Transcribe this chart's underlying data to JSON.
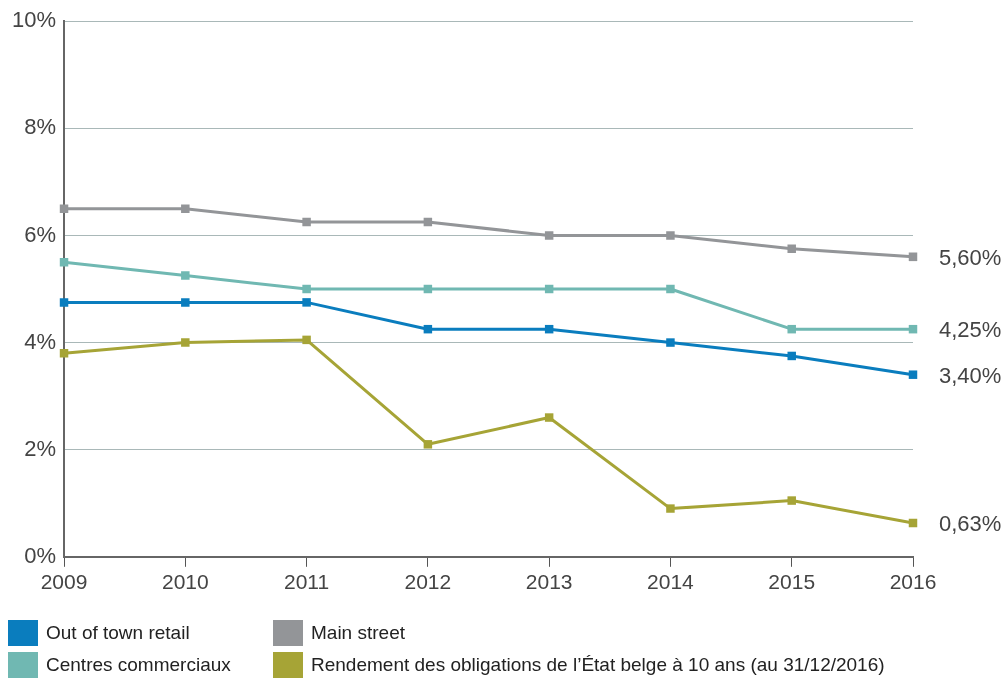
{
  "chart_data": {
    "type": "line",
    "categories": [
      "2009",
      "2010",
      "2011",
      "2012",
      "2013",
      "2014",
      "2015",
      "2016"
    ],
    "series": [
      {
        "name": "Out of town retail",
        "color": "#0a7dbe",
        "values": [
          4.75,
          4.75,
          4.75,
          4.25,
          4.25,
          4.0,
          3.75,
          3.4
        ],
        "value_labels": [
          null,
          null,
          null,
          null,
          null,
          null,
          null,
          "3,40%"
        ]
      },
      {
        "name": "Main street",
        "color": "#939598",
        "values": [
          6.5,
          6.5,
          6.25,
          6.25,
          6.0,
          6.0,
          5.75,
          5.6
        ],
        "value_labels": [
          null,
          null,
          null,
          null,
          null,
          null,
          null,
          "5,60%"
        ]
      },
      {
        "name": "Centres commerciaux",
        "color": "#70b8b2",
        "values": [
          5.5,
          5.25,
          5.0,
          5.0,
          5.0,
          5.0,
          4.25,
          4.25
        ],
        "value_labels": [
          null,
          null,
          null,
          null,
          null,
          null,
          null,
          "4,25%"
        ]
      },
      {
        "name": "Rendement des obligations de l’État belge à 10 ans (au 31/12/2016)",
        "color": "#a6a436",
        "values": [
          3.8,
          4.0,
          4.05,
          2.1,
          2.6,
          0.9,
          1.05,
          0.63
        ],
        "value_labels": [
          null,
          null,
          null,
          null,
          null,
          null,
          null,
          "0,63%"
        ]
      }
    ],
    "ylim": [
      0,
      10
    ],
    "yticks": [
      {
        "value": 0,
        "label": "0%"
      },
      {
        "value": 2,
        "label": "2%"
      },
      {
        "value": 4,
        "label": "4%"
      },
      {
        "value": 6,
        "label": "6%"
      },
      {
        "value": 8,
        "label": "8%"
      },
      {
        "value": 10,
        "label": "10%"
      }
    ],
    "grid": "y",
    "legend": "bottom",
    "marker": "square",
    "line_style": "solid"
  }
}
